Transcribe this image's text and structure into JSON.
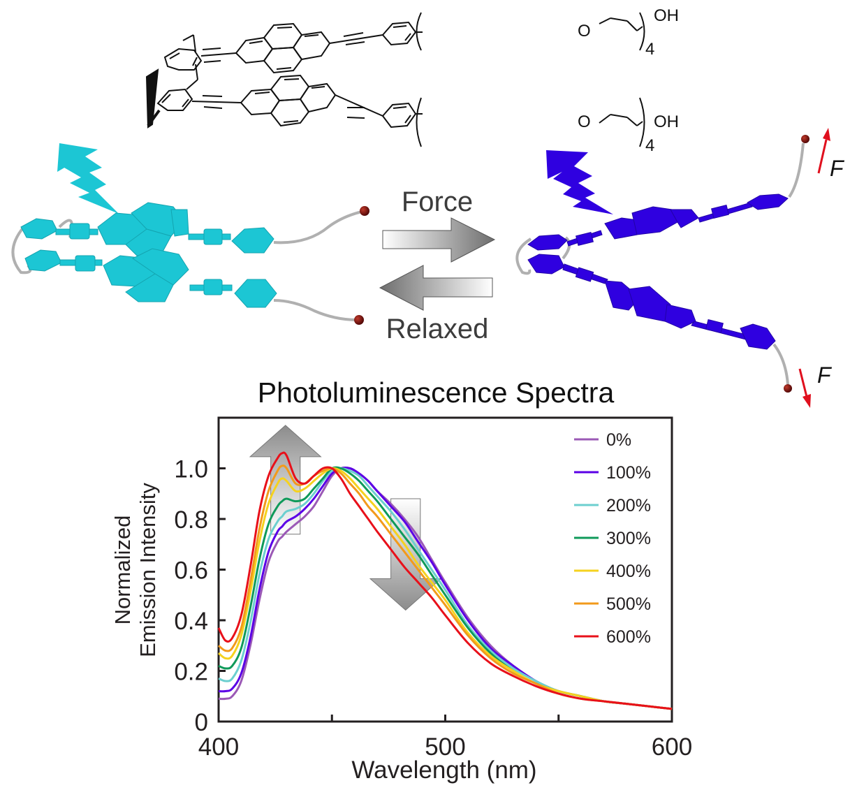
{
  "figure": {
    "molecule": {
      "substituent_top": {
        "o_label": "O",
        "oh_label": "OH",
        "repeat": "4"
      },
      "substituent_bottom": {
        "o_label": "O",
        "oh_label": "OH",
        "repeat": "4"
      }
    },
    "transition": {
      "forward_label": "Force",
      "reverse_label": "Relaxed"
    },
    "force_labels": {
      "top": "F",
      "bottom": "F"
    },
    "colors": {
      "relaxed_model": "#1cc6d4",
      "stretched_model": "#2f00e0",
      "force_arrow": "#e0101e",
      "end_bead": "#7a0a0a",
      "linker": "#b8b8b8",
      "arrow_gray": "#8a8a8a"
    }
  },
  "chart_data": {
    "type": "line",
    "title": "Photoluminescence Spectra",
    "xlabel": "Wavelength (nm)",
    "ylabel_lines": [
      "Normalized",
      "Emission Intensity"
    ],
    "xlim": [
      400,
      600
    ],
    "ylim": [
      0,
      1.2
    ],
    "xticks": [
      400,
      450,
      500,
      550,
      600
    ],
    "xtick_labels": [
      "400",
      "",
      "500",
      "",
      "600"
    ],
    "yticks": [
      0,
      0.2,
      0.4,
      0.6,
      0.8,
      1.0
    ],
    "ytick_labels": [
      "0",
      "0.2",
      "0.4",
      "0.6",
      "0.8",
      "1.0"
    ],
    "grid": false,
    "legend_position": "top-right",
    "x": [
      400,
      403,
      406,
      410,
      414,
      418,
      422,
      426,
      428,
      430,
      434,
      438,
      442,
      446,
      450,
      454,
      458,
      462,
      466,
      470,
      476,
      482,
      488,
      494,
      500,
      510,
      520,
      530,
      540,
      550,
      560,
      570,
      580,
      590,
      600
    ],
    "series": [
      {
        "name": "0%",
        "color": "#9b59b6",
        "values": [
          0.09,
          0.09,
          0.1,
          0.16,
          0.3,
          0.48,
          0.63,
          0.71,
          0.73,
          0.75,
          0.78,
          0.81,
          0.85,
          0.91,
          0.97,
          1.0,
          1.0,
          0.98,
          0.95,
          0.91,
          0.86,
          0.8,
          0.73,
          0.64,
          0.55,
          0.41,
          0.3,
          0.22,
          0.16,
          0.12,
          0.1,
          0.08,
          0.07,
          0.06,
          0.05
        ]
      },
      {
        "name": "100%",
        "color": "#5b00e6",
        "values": [
          0.12,
          0.12,
          0.13,
          0.19,
          0.33,
          0.52,
          0.67,
          0.75,
          0.77,
          0.79,
          0.81,
          0.84,
          0.88,
          0.93,
          0.98,
          1.0,
          1.0,
          0.98,
          0.95,
          0.91,
          0.85,
          0.79,
          0.71,
          0.63,
          0.54,
          0.4,
          0.29,
          0.22,
          0.16,
          0.12,
          0.1,
          0.08,
          0.07,
          0.06,
          0.05
        ]
      },
      {
        "name": "200%",
        "color": "#6ccfcf",
        "values": [
          0.17,
          0.16,
          0.17,
          0.24,
          0.39,
          0.58,
          0.72,
          0.79,
          0.81,
          0.83,
          0.84,
          0.86,
          0.9,
          0.95,
          0.99,
          1.0,
          0.99,
          0.97,
          0.93,
          0.89,
          0.83,
          0.76,
          0.68,
          0.6,
          0.52,
          0.38,
          0.28,
          0.21,
          0.16,
          0.12,
          0.1,
          0.08,
          0.07,
          0.06,
          0.05
        ]
      },
      {
        "name": "300%",
        "color": "#0f9a5a",
        "values": [
          0.22,
          0.21,
          0.22,
          0.29,
          0.45,
          0.64,
          0.78,
          0.85,
          0.87,
          0.88,
          0.87,
          0.88,
          0.92,
          0.96,
          1.0,
          1.0,
          0.98,
          0.95,
          0.91,
          0.87,
          0.8,
          0.73,
          0.66,
          0.58,
          0.5,
          0.37,
          0.27,
          0.2,
          0.15,
          0.12,
          0.1,
          0.08,
          0.07,
          0.06,
          0.05
        ]
      },
      {
        "name": "400%",
        "color": "#f5d21f",
        "values": [
          0.27,
          0.25,
          0.26,
          0.34,
          0.51,
          0.71,
          0.86,
          0.94,
          0.96,
          0.95,
          0.91,
          0.92,
          0.95,
          0.98,
          1.0,
          0.99,
          0.96,
          0.92,
          0.88,
          0.84,
          0.77,
          0.7,
          0.62,
          0.55,
          0.48,
          0.35,
          0.26,
          0.2,
          0.15,
          0.12,
          0.1,
          0.08,
          0.07,
          0.06,
          0.05
        ]
      },
      {
        "name": "500%",
        "color": "#f29a1b",
        "values": [
          0.3,
          0.28,
          0.29,
          0.37,
          0.55,
          0.76,
          0.91,
          0.99,
          1.01,
          1.0,
          0.94,
          0.94,
          0.97,
          0.99,
          1.0,
          0.98,
          0.94,
          0.9,
          0.85,
          0.81,
          0.74,
          0.67,
          0.6,
          0.53,
          0.46,
          0.34,
          0.25,
          0.19,
          0.15,
          0.11,
          0.09,
          0.08,
          0.07,
          0.06,
          0.05
        ]
      },
      {
        "name": "600%",
        "color": "#e8101a",
        "values": [
          0.37,
          0.32,
          0.33,
          0.42,
          0.61,
          0.83,
          0.97,
          1.04,
          1.06,
          1.05,
          0.96,
          0.94,
          0.97,
          1.0,
          1.0,
          0.96,
          0.9,
          0.85,
          0.8,
          0.75,
          0.68,
          0.61,
          0.55,
          0.49,
          0.42,
          0.31,
          0.23,
          0.18,
          0.14,
          0.11,
          0.09,
          0.08,
          0.07,
          0.06,
          0.05
        ]
      }
    ],
    "annotations": [
      {
        "type": "arrow-up",
        "meaning": "short-wavelength band increases with strain",
        "x_range": [
          423,
          436
        ],
        "y_range": [
          0.74,
          1.17
        ]
      },
      {
        "type": "arrow-down",
        "meaning": "long-wavelength shoulder decreases with strain",
        "x_range": [
          476,
          489
        ],
        "y_range": [
          0.44,
          0.88
        ]
      }
    ]
  }
}
